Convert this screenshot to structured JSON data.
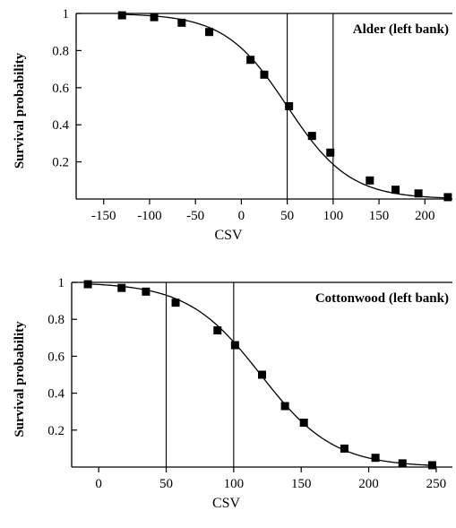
{
  "chart_data": [
    {
      "type": "line",
      "title": "Alder (left bank)",
      "xlabel": "CSV",
      "ylabel": "Survival probability",
      "xlim": [
        -180,
        230
      ],
      "ylim": [
        0,
        1
      ],
      "x_ticks": [
        -150,
        -100,
        -50,
        0,
        50,
        100,
        150,
        200
      ],
      "y_ticks": [
        1,
        0.8,
        0.6,
        0.4,
        0.2
      ],
      "y_tick_labels": [
        "1",
        "0.8",
        "0.6",
        "0.4",
        "0.2"
      ],
      "reference_lines_x": [
        50,
        100
      ],
      "curve": {
        "midpoint": 50,
        "scale": 34
      },
      "points": [
        {
          "x": -130,
          "y": 0.99
        },
        {
          "x": -95,
          "y": 0.98
        },
        {
          "x": -65,
          "y": 0.95
        },
        {
          "x": -35,
          "y": 0.9
        },
        {
          "x": 10,
          "y": 0.75
        },
        {
          "x": 25,
          "y": 0.67
        },
        {
          "x": 52,
          "y": 0.5
        },
        {
          "x": 77,
          "y": 0.34
        },
        {
          "x": 97,
          "y": 0.25
        },
        {
          "x": 140,
          "y": 0.1
        },
        {
          "x": 168,
          "y": 0.05
        },
        {
          "x": 193,
          "y": 0.03
        },
        {
          "x": 225,
          "y": 0.01
        }
      ],
      "grid": false,
      "legend": "none"
    },
    {
      "type": "line",
      "title": "Cottonwood (left bank)",
      "xlabel": "CSV",
      "ylabel": "Survival probability",
      "xlim": [
        -20,
        262
      ],
      "ylim": [
        0,
        1
      ],
      "x_ticks": [
        0,
        50,
        100,
        150,
        200,
        250
      ],
      "y_ticks": [
        1,
        0.8,
        0.6,
        0.4,
        0.2
      ],
      "y_tick_labels": [
        "1",
        "0.8",
        "0.6",
        "0.4",
        "0.2"
      ],
      "reference_lines_x": [
        50,
        100
      ],
      "curve": {
        "midpoint": 120,
        "scale": 27
      },
      "points": [
        {
          "x": -8,
          "y": 0.99
        },
        {
          "x": 17,
          "y": 0.97
        },
        {
          "x": 35,
          "y": 0.95
        },
        {
          "x": 57,
          "y": 0.89
        },
        {
          "x": 88,
          "y": 0.74
        },
        {
          "x": 101,
          "y": 0.66
        },
        {
          "x": 121,
          "y": 0.5
        },
        {
          "x": 138,
          "y": 0.33
        },
        {
          "x": 152,
          "y": 0.24
        },
        {
          "x": 182,
          "y": 0.1
        },
        {
          "x": 205,
          "y": 0.05
        },
        {
          "x": 225,
          "y": 0.02
        },
        {
          "x": 247,
          "y": 0.01
        }
      ],
      "grid": false,
      "legend": "none"
    }
  ]
}
